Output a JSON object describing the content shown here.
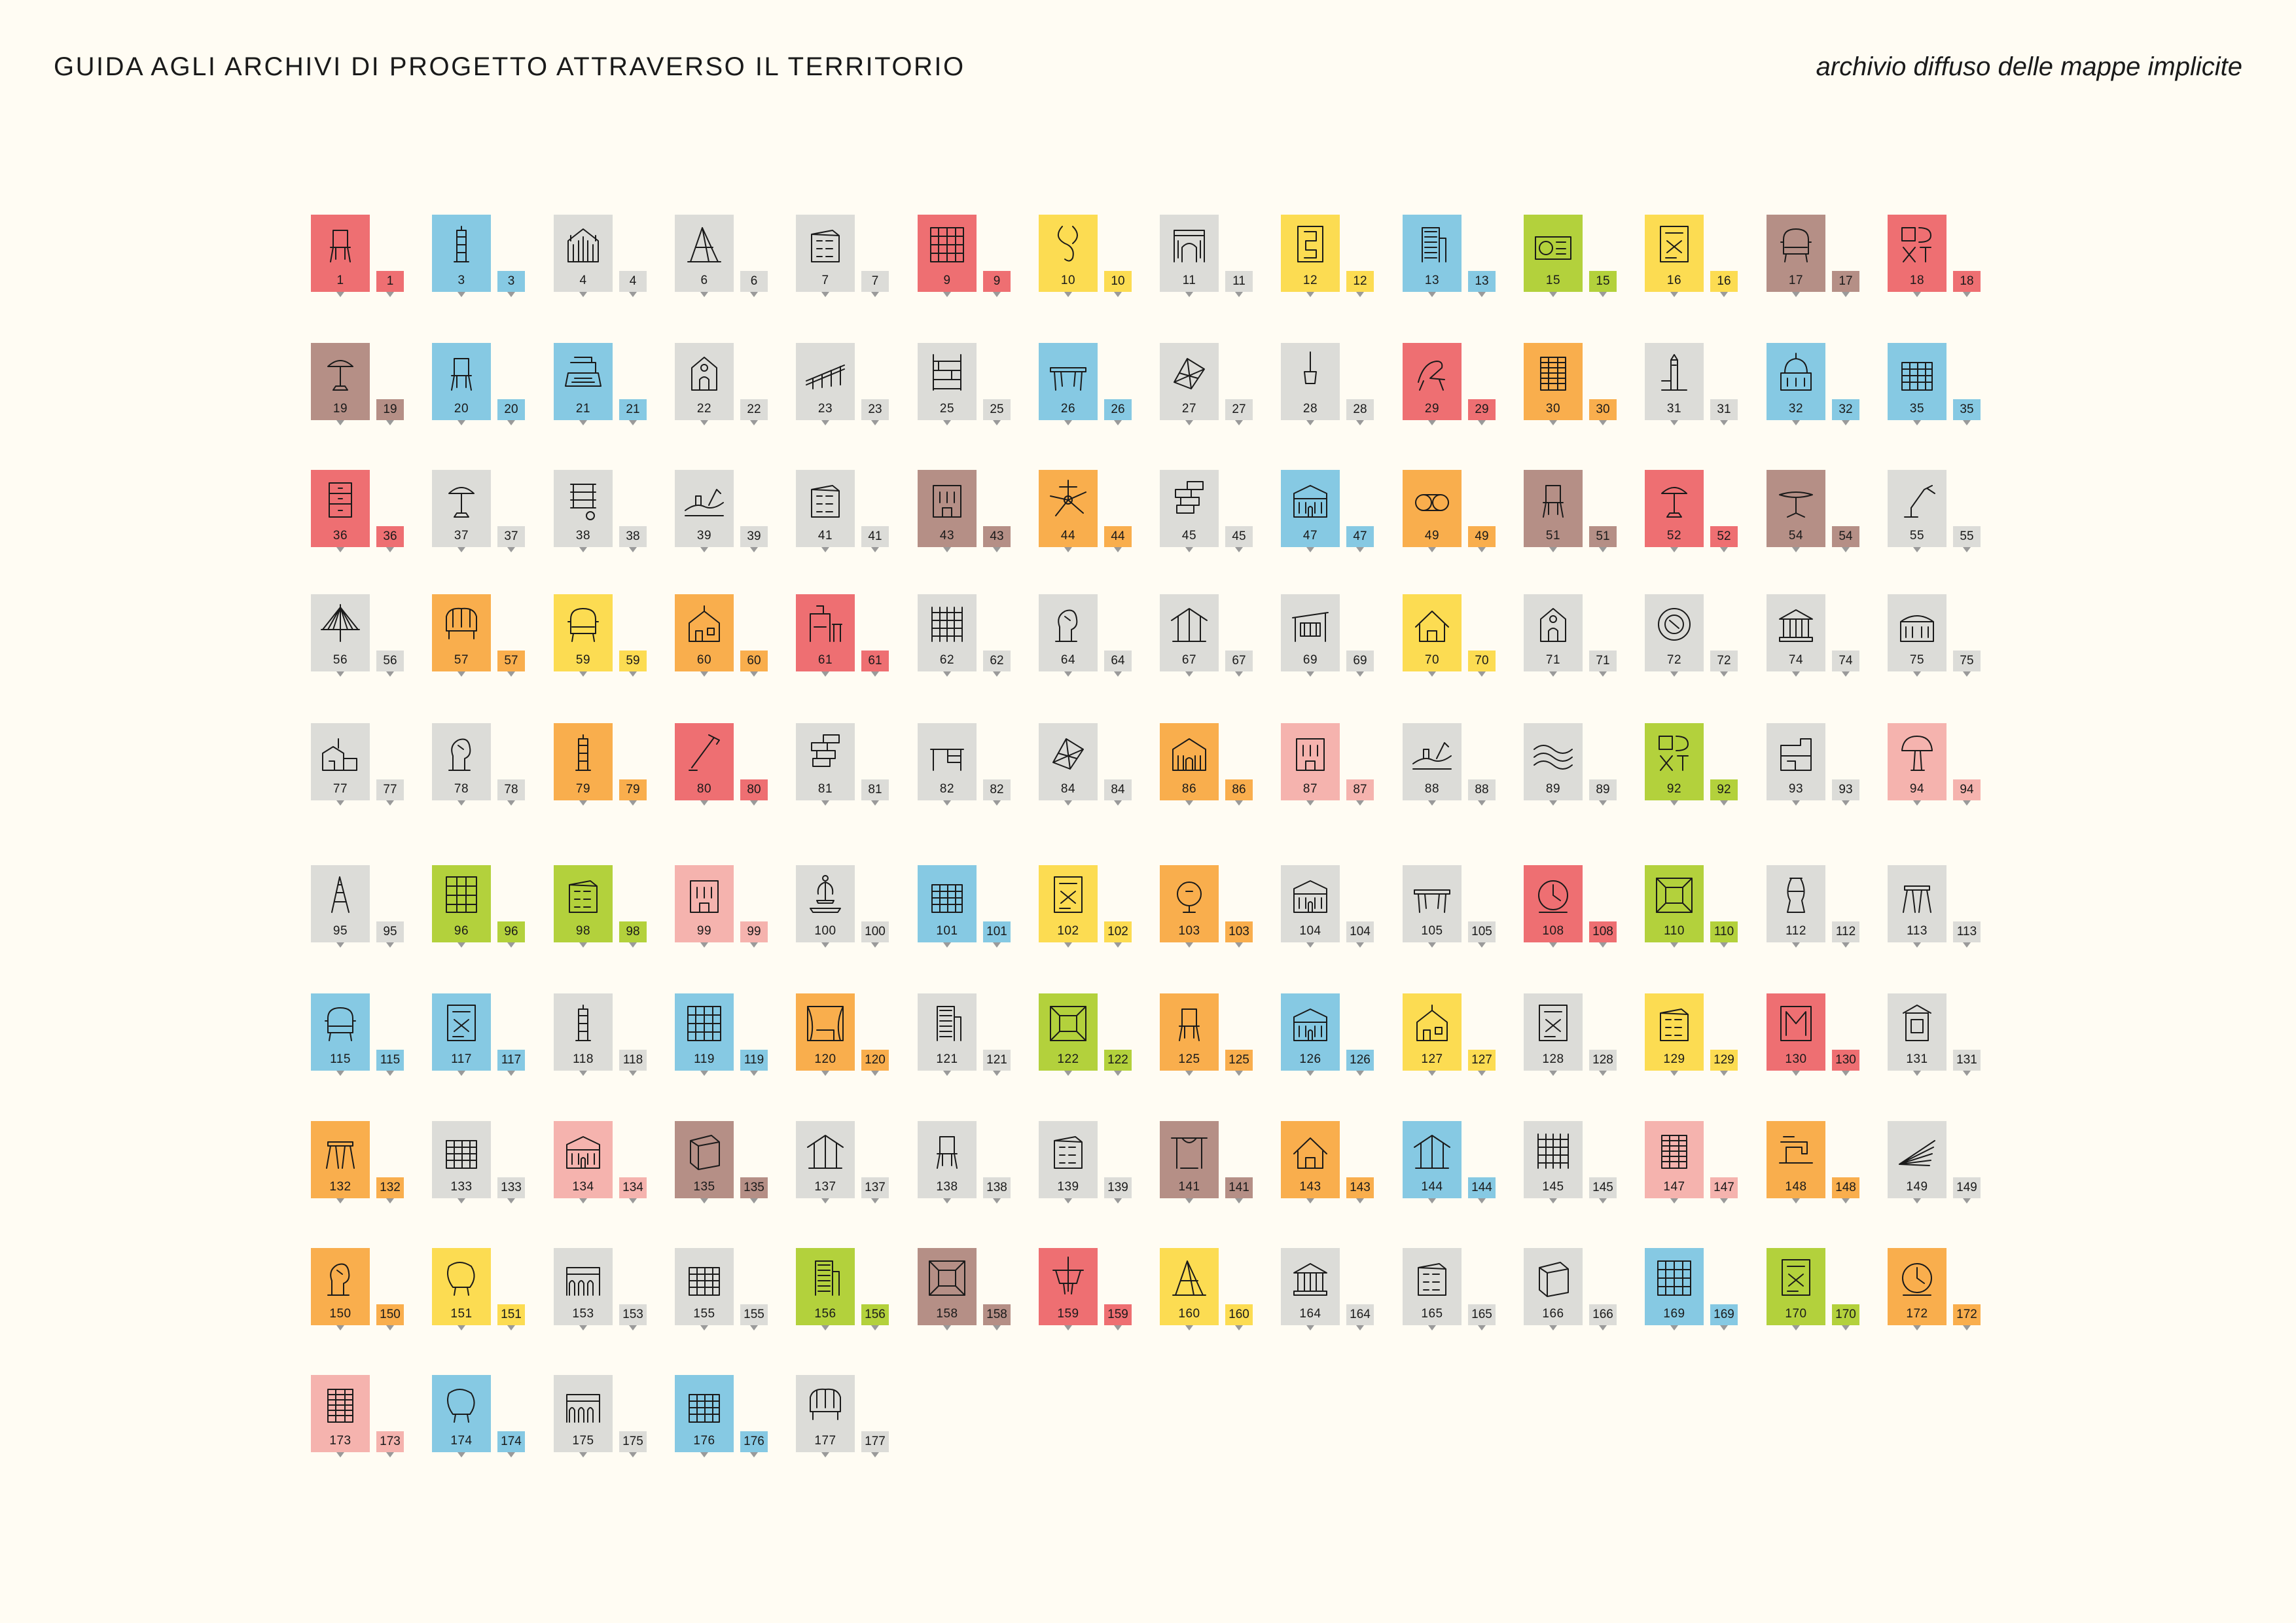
{
  "header": {
    "title": "GUIDA AGLI ARCHIVI DI PROGETTO ATTRAVERSO IL TERRITORIO",
    "subtitle": "archivio diffuso delle mappe implicite"
  },
  "palette": {
    "red": "#ee6f72",
    "blue": "#86c9e3",
    "grey": "#dcdcd8",
    "yellow": "#fcdc52",
    "green": "#b3d13c",
    "orange": "#f9ae4d",
    "brown": "#b58f86",
    "pink": "#f5b3ae",
    "tick": "#9a9a9a",
    "ink": "#1a1a1a"
  },
  "rows": [
    [
      {
        "n": "1",
        "c": "red",
        "icon": "chair-icon"
      },
      {
        "n": "3",
        "c": "blue",
        "icon": "tower-icon"
      },
      {
        "n": "4",
        "c": "grey",
        "icon": "cathedral-icon"
      },
      {
        "n": "6",
        "c": "grey",
        "icon": "monument-icon"
      },
      {
        "n": "7",
        "c": "grey",
        "icon": "building-icon"
      },
      {
        "n": "9",
        "c": "red",
        "icon": "grid-facade-icon"
      },
      {
        "n": "10",
        "c": "yellow",
        "icon": "hook-icon"
      },
      {
        "n": "11",
        "c": "grey",
        "icon": "arch-gate-icon"
      },
      {
        "n": "12",
        "c": "yellow",
        "icon": "letter-icon"
      },
      {
        "n": "13",
        "c": "blue",
        "icon": "skyscraper-icon"
      },
      {
        "n": "15",
        "c": "green",
        "icon": "radio-icon"
      },
      {
        "n": "16",
        "c": "yellow",
        "icon": "poster-icon"
      },
      {
        "n": "17",
        "c": "brown",
        "icon": "armchair-icon"
      },
      {
        "n": "18",
        "c": "red",
        "icon": "typography-icon"
      }
    ],
    [
      {
        "n": "19",
        "c": "brown",
        "icon": "lamp-icon"
      },
      {
        "n": "20",
        "c": "blue",
        "icon": "chair-icon"
      },
      {
        "n": "21",
        "c": "blue",
        "icon": "typewriter-icon"
      },
      {
        "n": "22",
        "c": "grey",
        "icon": "church-icon"
      },
      {
        "n": "23",
        "c": "grey",
        "icon": "bridge-icon"
      },
      {
        "n": "25",
        "c": "grey",
        "icon": "shelf-icon"
      },
      {
        "n": "26",
        "c": "blue",
        "icon": "table-icon"
      },
      {
        "n": "27",
        "c": "grey",
        "icon": "structure-icon"
      },
      {
        "n": "28",
        "c": "grey",
        "icon": "pendant-lamp-icon"
      },
      {
        "n": "29",
        "c": "red",
        "icon": "lounge-chair-icon"
      },
      {
        "n": "30",
        "c": "orange",
        "icon": "tower-block-icon"
      },
      {
        "n": "31",
        "c": "grey",
        "icon": "bell-tower-icon"
      },
      {
        "n": "32",
        "c": "blue",
        "icon": "dome-icon"
      },
      {
        "n": "35",
        "c": "blue",
        "icon": "office-icon"
      }
    ],
    [
      {
        "n": "36",
        "c": "red",
        "icon": "cabinet-icon"
      },
      {
        "n": "37",
        "c": "grey",
        "icon": "lamp-icon"
      },
      {
        "n": "38",
        "c": "grey",
        "icon": "spiral-icon"
      },
      {
        "n": "39",
        "c": "grey",
        "icon": "landscape-icon"
      },
      {
        "n": "41",
        "c": "grey",
        "icon": "building-icon"
      },
      {
        "n": "43",
        "c": "brown",
        "icon": "facade-icon"
      },
      {
        "n": "44",
        "c": "orange",
        "icon": "flower-icon"
      },
      {
        "n": "45",
        "c": "grey",
        "icon": "blocks-icon"
      },
      {
        "n": "47",
        "c": "blue",
        "icon": "palace-icon"
      },
      {
        "n": "49",
        "c": "orange",
        "icon": "tubes-icon"
      },
      {
        "n": "51",
        "c": "brown",
        "icon": "chair-icon"
      },
      {
        "n": "52",
        "c": "red",
        "icon": "lamp-icon"
      },
      {
        "n": "54",
        "c": "brown",
        "icon": "round-table-icon"
      },
      {
        "n": "55",
        "c": "grey",
        "icon": "desk-lamp-icon"
      }
    ],
    [
      {
        "n": "56",
        "c": "grey",
        "icon": "suspension-bridge-icon"
      },
      {
        "n": "57",
        "c": "orange",
        "icon": "sofa-icon"
      },
      {
        "n": "59",
        "c": "yellow",
        "icon": "armchair-icon"
      },
      {
        "n": "60",
        "c": "orange",
        "icon": "villa-icon"
      },
      {
        "n": "61",
        "c": "red",
        "icon": "cafe-icon"
      },
      {
        "n": "62",
        "c": "grey",
        "icon": "frame-icon"
      },
      {
        "n": "64",
        "c": "grey",
        "icon": "sculpture-icon"
      },
      {
        "n": "67",
        "c": "grey",
        "icon": "canopy-icon"
      },
      {
        "n": "69",
        "c": "grey",
        "icon": "pavilion-icon"
      },
      {
        "n": "70",
        "c": "yellow",
        "icon": "house-icon"
      },
      {
        "n": "71",
        "c": "grey",
        "icon": "church-icon"
      },
      {
        "n": "72",
        "c": "grey",
        "icon": "plate-icon"
      },
      {
        "n": "74",
        "c": "grey",
        "icon": "temple-icon"
      },
      {
        "n": "75",
        "c": "grey",
        "icon": "station-icon"
      }
    ],
    [
      {
        "n": "77",
        "c": "grey",
        "icon": "farmhouse-icon"
      },
      {
        "n": "78",
        "c": "grey",
        "icon": "sculpture-icon"
      },
      {
        "n": "79",
        "c": "orange",
        "icon": "tower-icon"
      },
      {
        "n": "80",
        "c": "red",
        "icon": "floor-lamp-icon"
      },
      {
        "n": "81",
        "c": "grey",
        "icon": "blocks-icon"
      },
      {
        "n": "82",
        "c": "grey",
        "icon": "desk-icon"
      },
      {
        "n": "84",
        "c": "grey",
        "icon": "structure-icon"
      },
      {
        "n": "86",
        "c": "orange",
        "icon": "basilica-icon"
      },
      {
        "n": "87",
        "c": "pink",
        "icon": "facade-icon"
      },
      {
        "n": "88",
        "c": "grey",
        "icon": "landscape-icon"
      },
      {
        "n": "89",
        "c": "grey",
        "icon": "wave-icon"
      },
      {
        "n": "92",
        "c": "green",
        "icon": "typography-icon"
      },
      {
        "n": "93",
        "c": "grey",
        "icon": "modern-house-icon"
      },
      {
        "n": "94",
        "c": "pink",
        "icon": "mushroom-lamp-icon"
      }
    ],
    [
      {
        "n": "95",
        "c": "grey",
        "icon": "ladder-icon"
      },
      {
        "n": "96",
        "c": "green",
        "icon": "bookcase-icon"
      },
      {
        "n": "98",
        "c": "green",
        "icon": "building-icon"
      },
      {
        "n": "99",
        "c": "pink",
        "icon": "facade-icon"
      },
      {
        "n": "100",
        "c": "grey",
        "icon": "fountain-icon"
      },
      {
        "n": "101",
        "c": "blue",
        "icon": "office-icon"
      },
      {
        "n": "102",
        "c": "yellow",
        "icon": "poster-icon"
      },
      {
        "n": "103",
        "c": "orange",
        "icon": "globe-lamp-icon"
      },
      {
        "n": "104",
        "c": "grey",
        "icon": "palace-icon"
      },
      {
        "n": "105",
        "c": "grey",
        "icon": "table-icon"
      },
      {
        "n": "108",
        "c": "red",
        "icon": "clock-icon"
      },
      {
        "n": "110",
        "c": "green",
        "icon": "interior-icon"
      },
      {
        "n": "112",
        "c": "grey",
        "icon": "vase-icon"
      },
      {
        "n": "113",
        "c": "grey",
        "icon": "stool-icon"
      }
    ],
    [
      {
        "n": "115",
        "c": "blue",
        "icon": "armchair-icon"
      },
      {
        "n": "117",
        "c": "blue",
        "icon": "poster-icon"
      },
      {
        "n": "118",
        "c": "grey",
        "icon": "tower-icon"
      },
      {
        "n": "119",
        "c": "blue",
        "icon": "grid-facade-icon"
      },
      {
        "n": "120",
        "c": "orange",
        "icon": "theatre-icon"
      },
      {
        "n": "121",
        "c": "grey",
        "icon": "skyscraper-icon"
      },
      {
        "n": "122",
        "c": "green",
        "icon": "interior-icon"
      },
      {
        "n": "125",
        "c": "orange",
        "icon": "chair-icon"
      },
      {
        "n": "126",
        "c": "blue",
        "icon": "palace-icon"
      },
      {
        "n": "127",
        "c": "yellow",
        "icon": "villa-icon"
      },
      {
        "n": "128",
        "c": "grey",
        "icon": "poster-icon"
      },
      {
        "n": "129",
        "c": "yellow",
        "icon": "building-icon"
      },
      {
        "n": "130",
        "c": "red",
        "icon": "logo-icon"
      },
      {
        "n": "131",
        "c": "grey",
        "icon": "kiosk-icon"
      }
    ],
    [
      {
        "n": "132",
        "c": "orange",
        "icon": "stool-icon"
      },
      {
        "n": "133",
        "c": "grey",
        "icon": "office-icon"
      },
      {
        "n": "134",
        "c": "pink",
        "icon": "palace-icon"
      },
      {
        "n": "135",
        "c": "brown",
        "icon": "cube-icon"
      },
      {
        "n": "137",
        "c": "grey",
        "icon": "canopy-icon"
      },
      {
        "n": "138",
        "c": "grey",
        "icon": "chair-icon"
      },
      {
        "n": "139",
        "c": "grey",
        "icon": "building-icon"
      },
      {
        "n": "141",
        "c": "brown",
        "icon": "gate-icon"
      },
      {
        "n": "143",
        "c": "orange",
        "icon": "house-icon"
      },
      {
        "n": "144",
        "c": "blue",
        "icon": "canopy-icon"
      },
      {
        "n": "145",
        "c": "grey",
        "icon": "frame-icon"
      },
      {
        "n": "147",
        "c": "pink",
        "icon": "tower-block-icon"
      },
      {
        "n": "148",
        "c": "orange",
        "icon": "sewing-machine-icon"
      },
      {
        "n": "149",
        "c": "grey",
        "icon": "pages-icon"
      }
    ],
    [
      {
        "n": "150",
        "c": "orange",
        "icon": "sculpture-icon"
      },
      {
        "n": "151",
        "c": "yellow",
        "icon": "shell-chair-icon"
      },
      {
        "n": "153",
        "c": "grey",
        "icon": "arcade-icon"
      },
      {
        "n": "155",
        "c": "grey",
        "icon": "office-icon"
      },
      {
        "n": "156",
        "c": "green",
        "icon": "skyscraper-icon"
      },
      {
        "n": "158",
        "c": "brown",
        "icon": "interior-icon"
      },
      {
        "n": "159",
        "c": "red",
        "icon": "chandelier-icon"
      },
      {
        "n": "160",
        "c": "yellow",
        "icon": "monument-icon"
      },
      {
        "n": "164",
        "c": "grey",
        "icon": "temple-icon"
      },
      {
        "n": "165",
        "c": "grey",
        "icon": "building-icon"
      },
      {
        "n": "166",
        "c": "grey",
        "icon": "cube-icon"
      },
      {
        "n": "169",
        "c": "blue",
        "icon": "grid-facade-icon"
      },
      {
        "n": "170",
        "c": "green",
        "icon": "poster-icon"
      },
      {
        "n": "172",
        "c": "orange",
        "icon": "clock-icon"
      }
    ],
    [
      {
        "n": "173",
        "c": "pink",
        "icon": "tower-block-icon"
      },
      {
        "n": "174",
        "c": "blue",
        "icon": "shell-chair-icon"
      },
      {
        "n": "175",
        "c": "grey",
        "icon": "arcade-icon"
      },
      {
        "n": "176",
        "c": "blue",
        "icon": "office-icon"
      },
      {
        "n": "177",
        "c": "grey",
        "icon": "sofa-icon"
      }
    ]
  ]
}
